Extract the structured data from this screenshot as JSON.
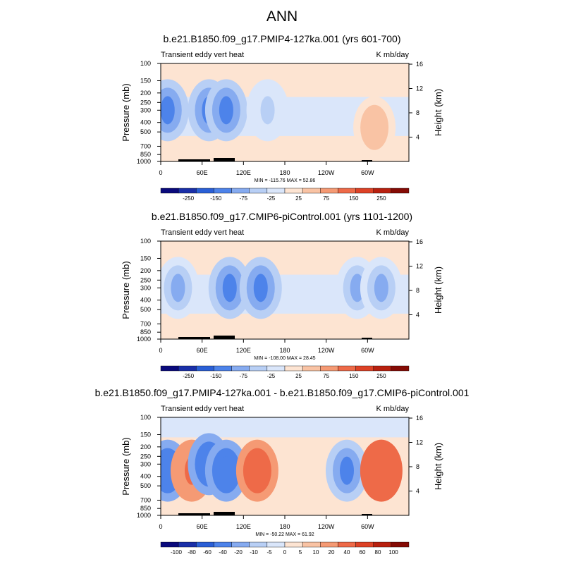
{
  "page_title": "ANN",
  "chart_data": [
    {
      "type": "heatmap",
      "title": "b.e21.B1850.f09_g17.PMIP4-127ka.001 (yrs 601-700)",
      "left_label": "Transient eddy vert heat",
      "right_label": "K mb/day",
      "ylabel": "Pressure (mb)",
      "y2label": "Height (km)",
      "x_ticks": [
        "0",
        "60E",
        "120E",
        "180",
        "120W",
        "60W"
      ],
      "y_ticks": [
        "100",
        "150",
        "200",
        "250",
        "300",
        "400",
        "500",
        "700",
        "850",
        "1000"
      ],
      "y2_ticks": [
        "16",
        "12",
        "8",
        "4"
      ],
      "minmax": "MIN = -115.76   MAX = 52.86",
      "colorbar_labels": [
        "-250",
        "-150",
        "-75",
        "-25",
        "25",
        "75",
        "150",
        "250"
      ],
      "features": [
        {
          "lon": 10,
          "p": 300,
          "value": -100
        },
        {
          "lon": 70,
          "p": 300,
          "value": -110
        },
        {
          "lon": 95,
          "p": 300,
          "value": -115
        },
        {
          "lon": 155,
          "p": 300,
          "value": -30
        },
        {
          "lon": 310,
          "p": 450,
          "value": 50
        }
      ]
    },
    {
      "type": "heatmap",
      "title": "b.e21.B1850.f09_g17.CMIP6-piControl.001 (yrs 1101-1200)",
      "left_label": "Transient eddy vert heat",
      "right_label": "K mb/day",
      "ylabel": "Pressure (mb)",
      "y2label": "Height (km)",
      "x_ticks": [
        "0",
        "60E",
        "120E",
        "180",
        "120W",
        "60W"
      ],
      "y_ticks": [
        "100",
        "150",
        "200",
        "250",
        "300",
        "400",
        "500",
        "700",
        "850",
        "1000"
      ],
      "y2_ticks": [
        "16",
        "12",
        "8",
        "4"
      ],
      "minmax": "MIN = -108.00   MAX = 28.45",
      "colorbar_labels": [
        "-250",
        "-150",
        "-75",
        "-25",
        "25",
        "75",
        "150",
        "250"
      ],
      "features": [
        {
          "lon": 25,
          "p": 300,
          "value": -60
        },
        {
          "lon": 100,
          "p": 300,
          "value": -90
        },
        {
          "lon": 145,
          "p": 300,
          "value": -108
        },
        {
          "lon": 285,
          "p": 300,
          "value": -70
        },
        {
          "lon": 320,
          "p": 300,
          "value": -50
        }
      ]
    },
    {
      "type": "heatmap",
      "title": "b.e21.B1850.f09_g17.PMIP4-127ka.001 - b.e21.B1850.f09_g17.CMIP6-piControl.001",
      "left_label": "Transient eddy vert heat",
      "right_label": "K mb/day",
      "ylabel": "Pressure (mb)",
      "y2label": "Height (km)",
      "x_ticks": [
        "0",
        "60E",
        "120E",
        "180",
        "120W",
        "60W"
      ],
      "y_ticks": [
        "100",
        "150",
        "200",
        "250",
        "300",
        "400",
        "500",
        "700",
        "850",
        "1000"
      ],
      "y2_ticks": [
        "16",
        "12",
        "8",
        "4"
      ],
      "minmax": "MIN = -50.22   MAX = 61.92",
      "colorbar_labels": [
        "-100",
        "-80",
        "-60",
        "-40",
        "-20",
        "-10",
        "-5",
        "0",
        "5",
        "10",
        "20",
        "40",
        "60",
        "80",
        "100"
      ],
      "features": [
        {
          "lon": 10,
          "p": 350,
          "value": -50
        },
        {
          "lon": 45,
          "p": 350,
          "value": 30
        },
        {
          "lon": 70,
          "p": 300,
          "value": -45
        },
        {
          "lon": 95,
          "p": 350,
          "value": -50
        },
        {
          "lon": 140,
          "p": 350,
          "value": 55
        },
        {
          "lon": 270,
          "p": 350,
          "value": -25
        },
        {
          "lon": 320,
          "p": 350,
          "value": 60
        }
      ]
    }
  ],
  "colors": {
    "scale": [
      "#0a0a7c",
      "#1a2fa8",
      "#2a5fd6",
      "#4d83ea",
      "#86abf0",
      "#b8cff5",
      "#dae6fa",
      "#fde4d2",
      "#f9c3a4",
      "#f59a74",
      "#ee6a48",
      "#dd4226",
      "#b8200f",
      "#850b05"
    ]
  }
}
